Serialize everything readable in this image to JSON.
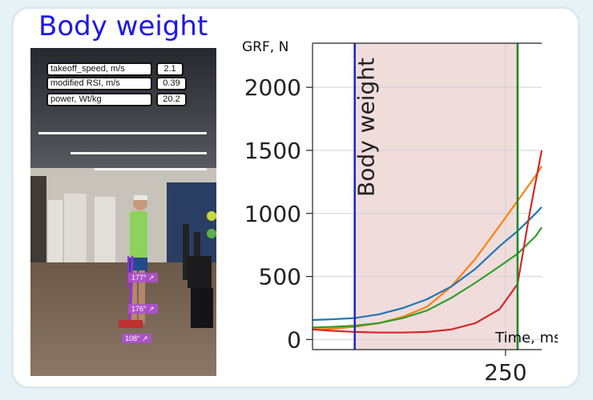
{
  "title": "Body weight",
  "metrics": [
    {
      "label": "takeoff_speed, m/s",
      "value": "2.1"
    },
    {
      "label": "modified RSI, m/s",
      "value": "0.39"
    },
    {
      "label": "power, Wt/kg",
      "value": "20.2"
    }
  ],
  "angles": [
    "177°",
    "176°",
    "108°"
  ],
  "colors": {
    "title": "#1d18e8",
    "phase_fill": "#f1dcdc",
    "phase_start_line": "#1a22c8",
    "phase_end_line": "#1a8a22",
    "angle_tag": "#b050d2"
  },
  "chart_data": {
    "type": "line",
    "ylabel": "GRF, N",
    "xlabel": "Time, ms",
    "xlim": [
      -70,
      310
    ],
    "ylim": [
      -80,
      2350
    ],
    "yticks": [
      0,
      500,
      1000,
      1500,
      2000
    ],
    "xticks": [
      250
    ],
    "grid": true,
    "phase": {
      "start": 0,
      "end": 270,
      "label": "Body weight"
    },
    "series": [
      {
        "color": "#ff7f0e",
        "x": [
          -70,
          -40,
          0,
          40,
          80,
          120,
          160,
          200,
          240,
          270,
          300,
          310
        ],
        "y": [
          80,
          85,
          100,
          130,
          180,
          260,
          420,
          640,
          900,
          1100,
          1300,
          1375
        ]
      },
      {
        "color": "#1f77b4",
        "x": [
          -70,
          -40,
          0,
          40,
          80,
          120,
          160,
          200,
          240,
          270,
          300,
          310
        ],
        "y": [
          155,
          160,
          170,
          200,
          250,
          320,
          420,
          560,
          740,
          860,
          1000,
          1050
        ]
      },
      {
        "color": "#2ca02c",
        "x": [
          -70,
          -40,
          0,
          40,
          80,
          120,
          160,
          200,
          240,
          270,
          300,
          310
        ],
        "y": [
          95,
          100,
          110,
          130,
          170,
          230,
          330,
          450,
          580,
          680,
          820,
          890
        ]
      },
      {
        "color": "#d62728",
        "x": [
          -70,
          -40,
          0,
          40,
          80,
          120,
          160,
          200,
          240,
          270,
          290,
          310
        ],
        "y": [
          80,
          70,
          60,
          55,
          55,
          60,
          80,
          130,
          240,
          440,
          1000,
          1500
        ]
      }
    ]
  }
}
